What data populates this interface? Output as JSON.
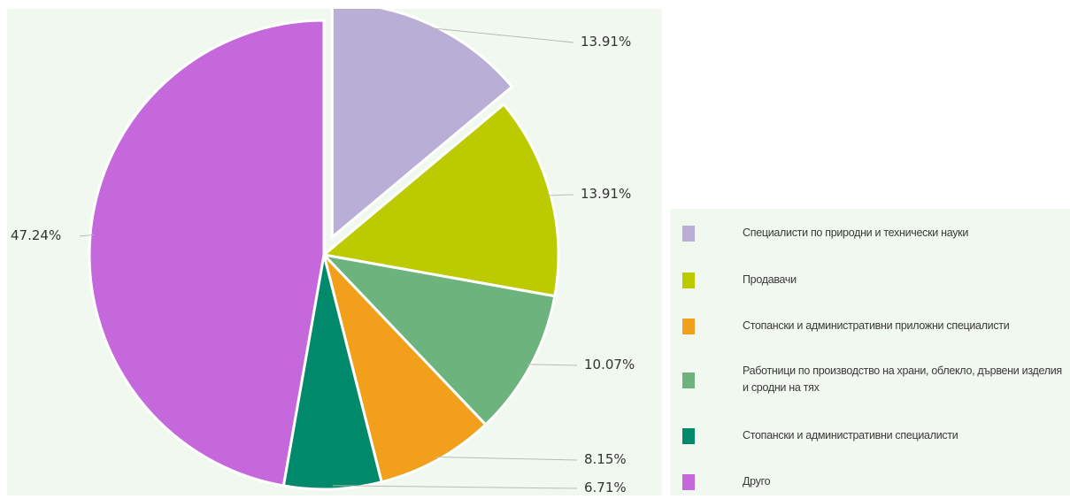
{
  "chart_data": {
    "type": "pie",
    "series": [
      {
        "label": "Специалисти по природни и технически науки",
        "value": 13.91,
        "display": "13.91%",
        "color": "#b9aed6",
        "exploded": true
      },
      {
        "label": "Продавачи",
        "value": 13.91,
        "display": "13.91%",
        "color": "#bccb00"
      },
      {
        "label": "Работници по производство на храни, облекло, дървени изделия и сродни на тях",
        "value": 10.07,
        "display": "10.07%",
        "color": "#6db37d"
      },
      {
        "label": "Стопански и административни приложни специалисти",
        "value": 8.15,
        "display": "8.15%",
        "color": "#f2a01c"
      },
      {
        "label": "Стопански и административни специалисти",
        "value": 6.71,
        "display": "6.71%",
        "color": "#00896a"
      },
      {
        "label": "Друго",
        "value": 47.24,
        "display": "47.24%",
        "color": "#c468dc"
      }
    ],
    "legend": {
      "placement": "right",
      "items": [
        {
          "label": "Специалисти по природни и технически науки",
          "color": "#b9aed6"
        },
        {
          "label": "Продавачи",
          "color": "#bccb00"
        },
        {
          "label": "Стопански и административни приложни специалисти",
          "color": "#f2a01c"
        },
        {
          "label": "Работници по производство на храни, облекло, дървени изделия и сродни на тях",
          "color": "#6db37d"
        },
        {
          "label": "Стопански и административни специалисти",
          "color": "#00896a"
        },
        {
          "label": "Друго",
          "color": "#c468dc"
        }
      ]
    }
  }
}
